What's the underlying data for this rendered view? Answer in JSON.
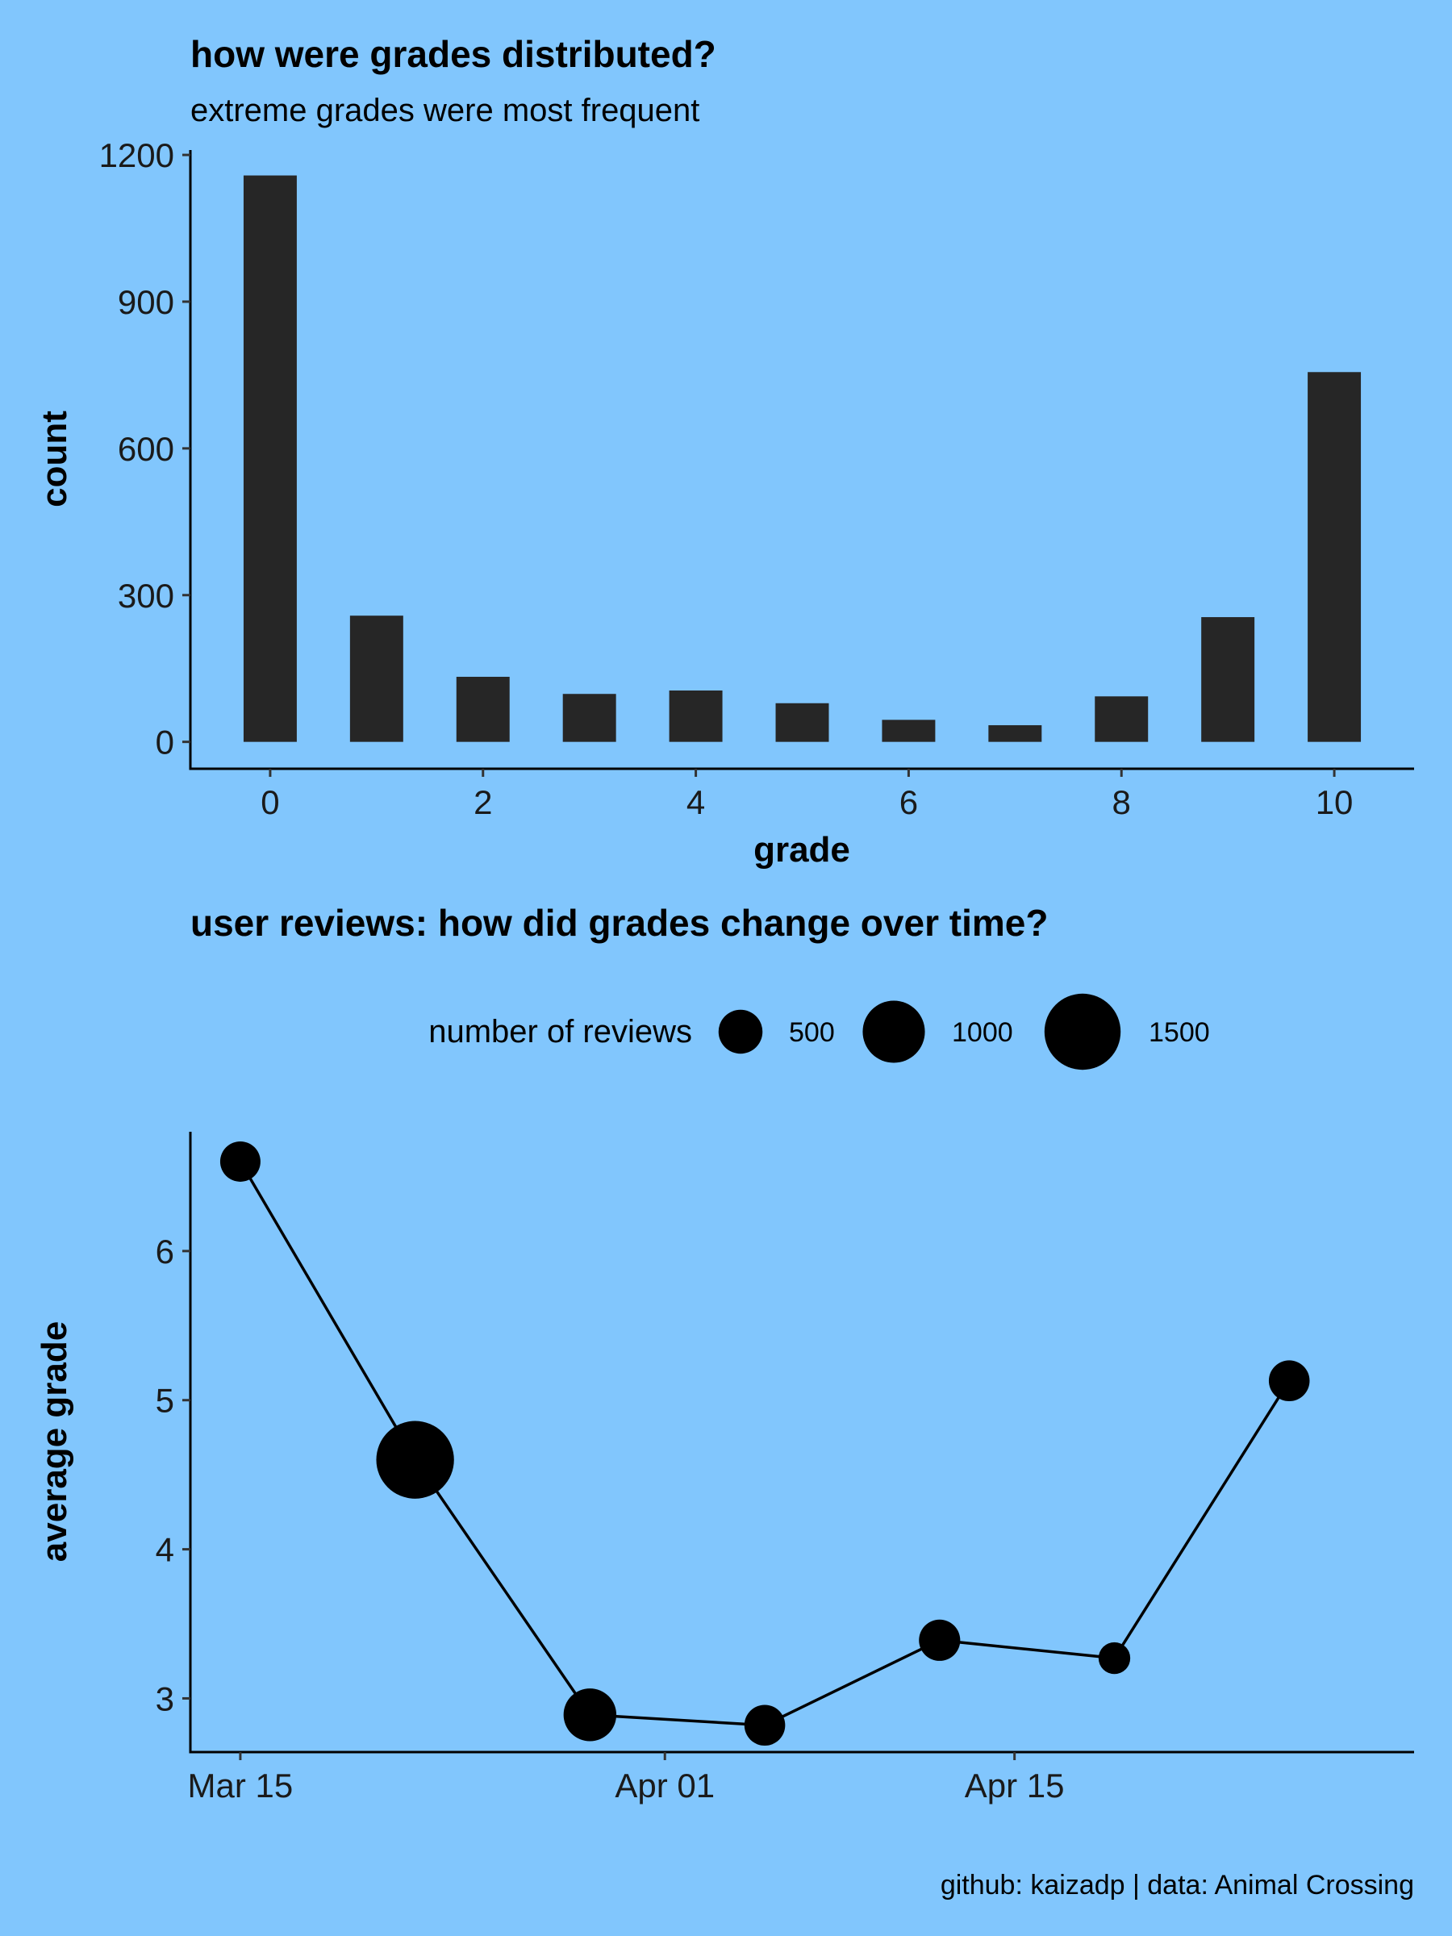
{
  "colors": {
    "background": "#81c6fd",
    "bar": "#262626",
    "line": "#000000",
    "point": "#000000"
  },
  "caption": "github: kaizadp | data: Animal Crossing",
  "chart_data": [
    {
      "type": "bar",
      "title": "how were grades distributed?",
      "subtitle": "extreme grades were most frequent",
      "xlabel": "grade",
      "ylabel": "count",
      "categories": [
        0,
        1,
        2,
        3,
        4,
        5,
        6,
        7,
        8,
        9,
        10
      ],
      "values": [
        1158,
        258,
        133,
        98,
        105,
        79,
        45,
        34,
        93,
        255,
        756
      ],
      "xlim": [
        -0.75,
        10.75
      ],
      "ylim": [
        -55,
        1210
      ],
      "xticks": [
        0,
        2,
        4,
        6,
        8,
        10
      ],
      "xtick_labels": [
        "0",
        "2",
        "4",
        "6",
        "8",
        "10"
      ],
      "yticks": [
        0,
        300,
        600,
        900,
        1200
      ],
      "ytick_labels": [
        "0",
        "300",
        "600",
        "900",
        "1200"
      ],
      "grid": false
    },
    {
      "type": "scatter",
      "title": "user reviews: how did grades change over time?",
      "xlabel": "",
      "ylabel": "average grade",
      "x": [
        "2020-03-15",
        "2020-03-22",
        "2020-03-29",
        "2020-04-05",
        "2020-04-12",
        "2020-04-19",
        "2020-04-26"
      ],
      "y": [
        6.6,
        4.6,
        2.89,
        2.82,
        3.39,
        3.27,
        5.13
      ],
      "size": [
        420,
        1560,
        720,
        430,
        440,
        260,
        430
      ],
      "connect_points": true,
      "xlim": [
        "2020-03-13",
        "2020-05-01"
      ],
      "ylim": [
        2.64,
        6.8
      ],
      "xticks": [
        "2020-03-15",
        "2020-04-01",
        "2020-04-15"
      ],
      "xtick_labels": [
        "Mar 15",
        "Apr 01",
        "Apr 15"
      ],
      "yticks": [
        3,
        4,
        5,
        6
      ],
      "ytick_labels": [
        "3",
        "4",
        "5",
        "6"
      ],
      "legend": {
        "title": "number of reviews",
        "position": "top",
        "sizes": [
          500,
          1000,
          1500
        ],
        "labels": [
          "500",
          "1000",
          "1500"
        ]
      },
      "grid": false
    }
  ]
}
